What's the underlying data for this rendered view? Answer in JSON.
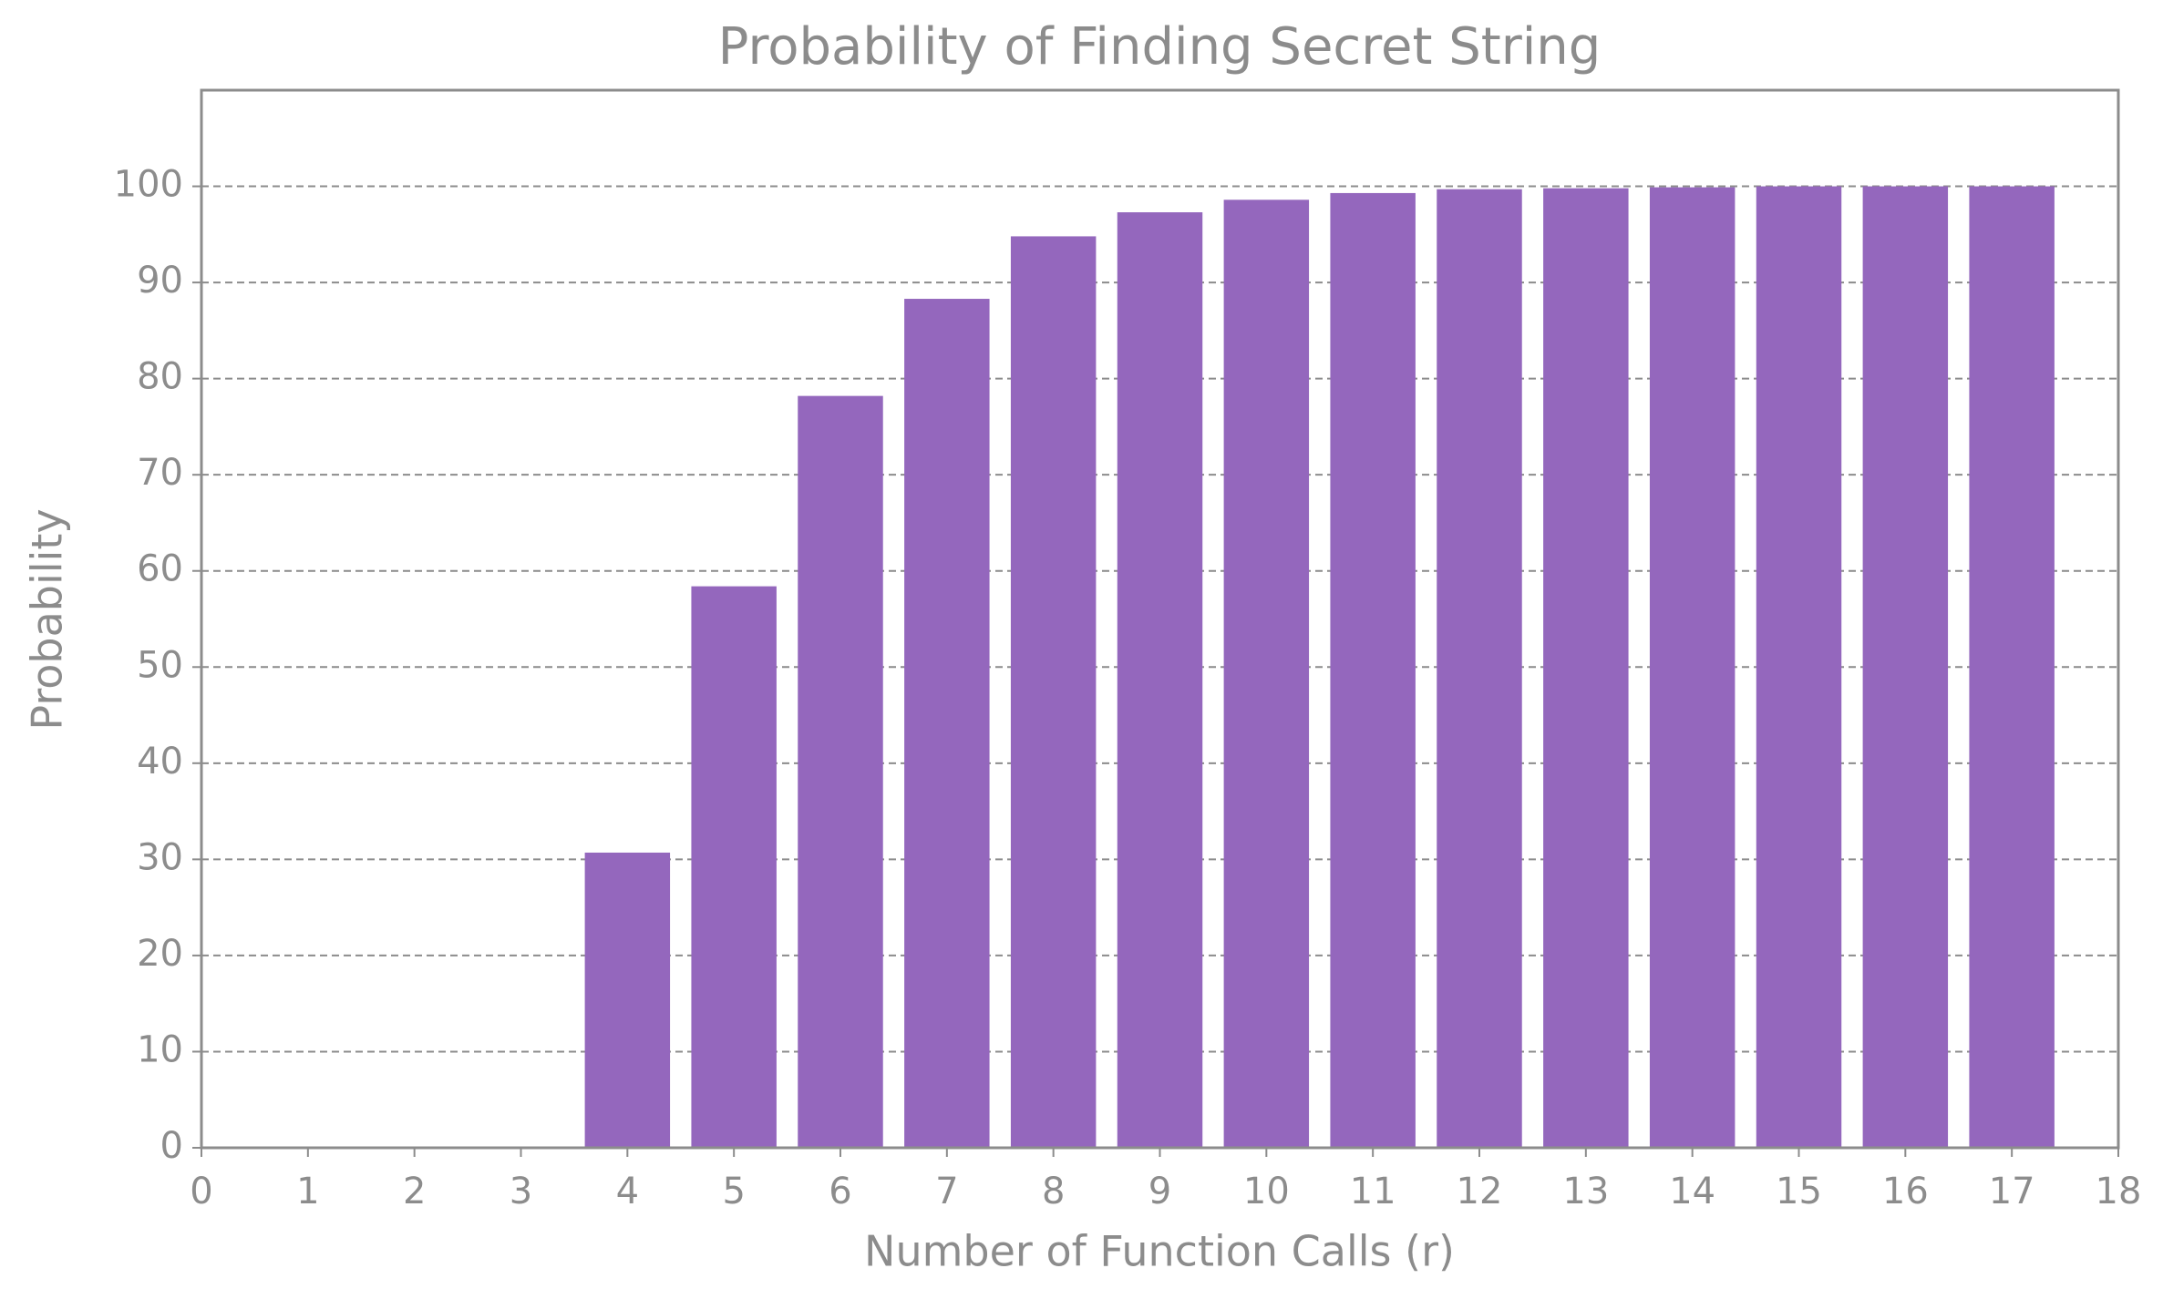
{
  "chart_data": {
    "type": "bar",
    "title": "Probability of Finding Secret String",
    "xlabel": "Number of Function Calls (r)",
    "ylabel": "Probability",
    "x": [
      4,
      5,
      6,
      7,
      8,
      9,
      10,
      11,
      12,
      13,
      14,
      15,
      16,
      17
    ],
    "values": [
      30.7,
      58.4,
      78.2,
      88.3,
      94.8,
      97.3,
      98.6,
      99.3,
      99.7,
      99.8,
      99.9,
      100,
      100,
      100
    ],
    "color": "#9467bd",
    "xlim": [
      0,
      18
    ],
    "xticks": [
      0,
      1,
      2,
      3,
      4,
      5,
      6,
      7,
      8,
      9,
      10,
      11,
      12,
      13,
      14,
      15,
      16,
      17,
      18
    ],
    "ylim": [
      0,
      110
    ],
    "yticks": [
      0,
      10,
      20,
      30,
      40,
      50,
      60,
      70,
      80,
      90,
      100
    ],
    "grid": true
  }
}
